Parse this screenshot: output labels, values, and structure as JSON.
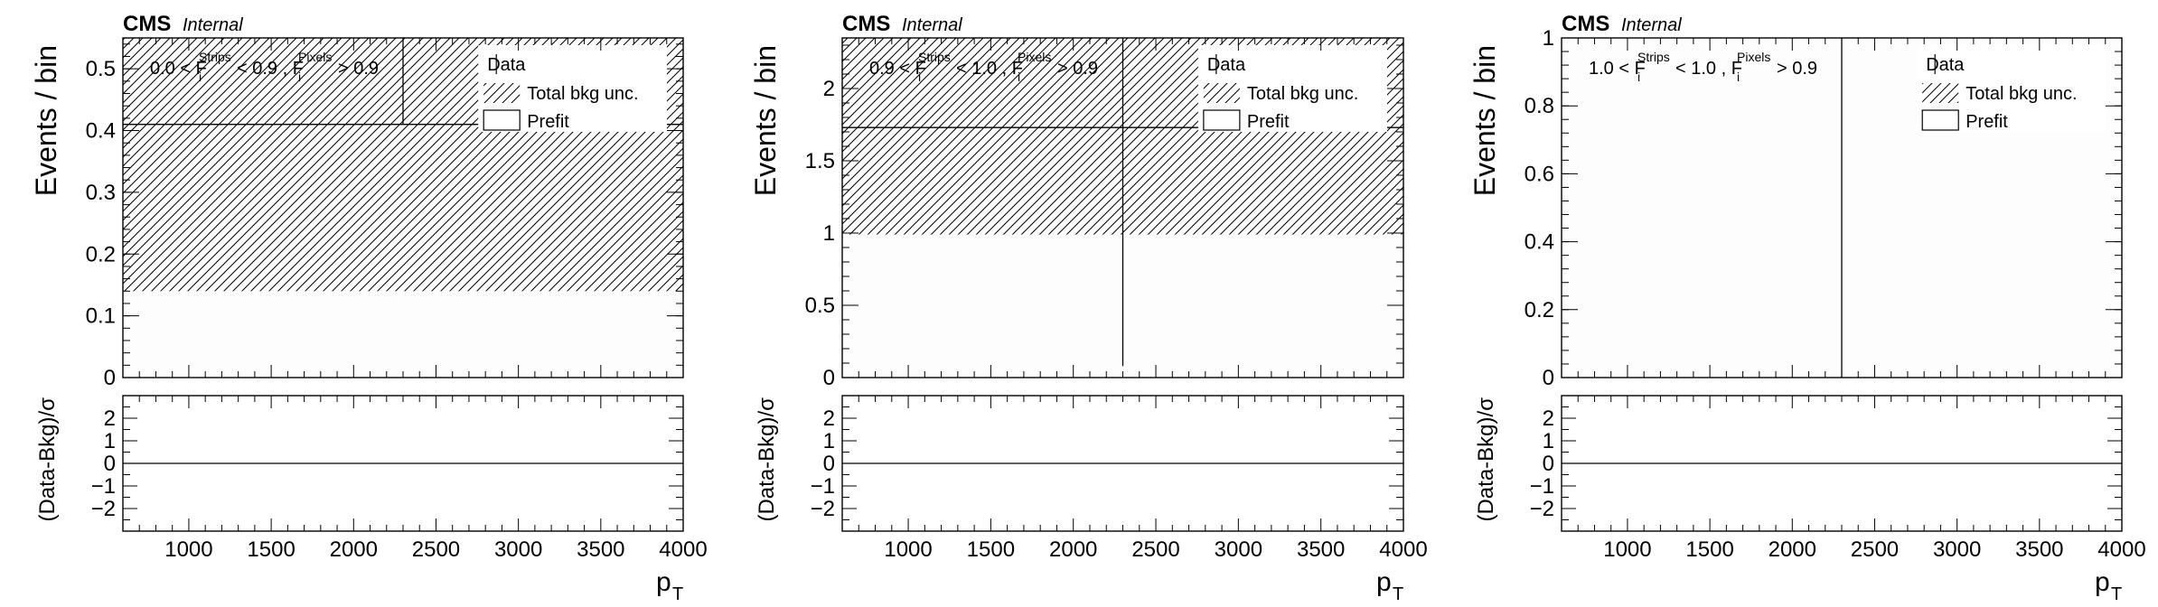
{
  "common": {
    "experiment": "CMS",
    "status": "Internal",
    "ratio_ylabel": "(Data-Bkg)/σ",
    "ratio_ylim": [
      -3,
      3
    ],
    "ratio_ticks": [
      "2",
      "1",
      "0",
      "−1",
      "−2"
    ],
    "ratio_tick_values": [
      2,
      1,
      0,
      -1,
      -2
    ],
    "xlim": [
      600,
      4000
    ],
    "x_ticks": [
      1000,
      1500,
      2000,
      2500,
      3000,
      3500,
      4000
    ],
    "x_tick_labels": [
      "1000",
      "1500",
      "2000",
      "2500",
      "3000",
      "3500",
      "4000"
    ],
    "x_minor_step": 100,
    "xlabel_main": "p",
    "xlabel_sub": "T",
    "colors": {
      "axis": "#000000",
      "hatch": "#000000",
      "background": "#ffffff",
      "fill": "#fdfdfd"
    }
  },
  "chart_data": [
    {
      "type": "bar",
      "ylabel": "Events / bin",
      "ylim": [
        0,
        0.55
      ],
      "y_ticks": [
        0,
        0.1,
        0.2,
        0.3,
        0.4,
        0.5
      ],
      "y_tick_labels": [
        "0",
        "0.1",
        "0.2",
        "0.3",
        "0.4",
        "0.5"
      ],
      "y_minor_step": 0.02,
      "selection": {
        "lo": "0.0",
        "hi": "0.9",
        "pixels": "0.9"
      },
      "bins": [
        {
          "xlow": 600,
          "xhigh": 4000
        }
      ],
      "prefit_value": 0.41,
      "unc_low": 0.14,
      "unc_high": 0.55,
      "data_x": 2300,
      "data_ylow": 0.41,
      "data_yhigh": 0.55,
      "legend": {
        "data": "Data",
        "unc": "Total bkg unc.",
        "prefit": "Prefit"
      },
      "legend_position": "top-right"
    },
    {
      "type": "bar",
      "ylabel": "Events / bin",
      "ylim": [
        0,
        2.35
      ],
      "y_ticks": [
        0,
        0.5,
        1,
        1.5,
        2
      ],
      "y_tick_labels": [
        "0",
        "0.5",
        "1",
        "1.5",
        "2"
      ],
      "y_minor_step": 0.1,
      "selection": {
        "lo": "0.9",
        "hi": "1.0",
        "pixels": "0.9"
      },
      "bins": [
        {
          "xlow": 600,
          "xhigh": 4000
        }
      ],
      "prefit_value": 1.73,
      "unc_low": 0.99,
      "unc_high": 2.35,
      "data_x": 2300,
      "data_ylow": 0.08,
      "data_yhigh": 2.35,
      "legend": {
        "data": "Data",
        "unc": "Total bkg unc.",
        "prefit": "Prefit"
      },
      "legend_position": "top-right"
    },
    {
      "type": "bar",
      "ylabel": "Events / bin",
      "ylim": [
        0,
        1
      ],
      "y_ticks": [
        0,
        0.2,
        0.4,
        0.6,
        0.8,
        1
      ],
      "y_tick_labels": [
        "0",
        "0.2",
        "0.4",
        "0.6",
        "0.8",
        "1"
      ],
      "y_minor_step": 0.04,
      "selection": {
        "lo": "1.0",
        "hi": "1.0",
        "pixels": "0.9"
      },
      "bins": [
        {
          "xlow": 600,
          "xhigh": 4000
        }
      ],
      "prefit_value": 0,
      "unc_low": 0,
      "unc_high": 0,
      "data_x": 2300,
      "data_ylow": 0,
      "data_yhigh": 1,
      "legend": {
        "data": "Data",
        "unc": "Total bkg unc.",
        "prefit": "Prefit"
      },
      "legend_position": "top-right"
    }
  ]
}
